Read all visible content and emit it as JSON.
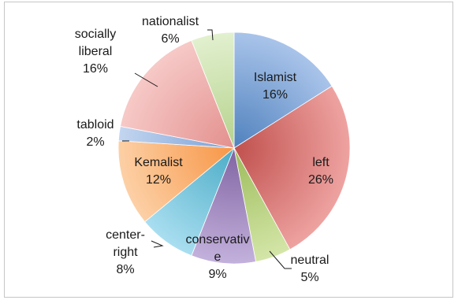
{
  "chart_data": {
    "type": "pie",
    "title": "",
    "slices": [
      {
        "label": "Islamist",
        "percent_label": "16%",
        "value": 16,
        "color": "#4f81bd",
        "light": "#a9c4ea",
        "text_lines": [
          "Islamist",
          "16%"
        ],
        "inside": true
      },
      {
        "label": "left",
        "percent_label": "26%",
        "value": 26,
        "color": "#c0504d",
        "light": "#eea3a1",
        "text_lines": [
          "left",
          "26%"
        ],
        "inside": true
      },
      {
        "label": "neutral",
        "percent_label": "5%",
        "value": 5,
        "color": "#9bbb59",
        "light": "#d4e6a8",
        "text_lines": [
          "neutral",
          "5%"
        ],
        "inside": false
      },
      {
        "label": "conservative",
        "percent_label": "9%",
        "value": 9,
        "color": "#8064a2",
        "light": "#c3b1dc",
        "text_lines": [
          "conservativ",
          "e",
          "9%"
        ],
        "inside": false
      },
      {
        "label": "center-right",
        "percent_label": "8%",
        "value": 8,
        "color": "#4bacc6",
        "light": "#a9def0",
        "text_lines": [
          "center-",
          "right",
          "8%"
        ],
        "inside": false
      },
      {
        "label": "Kemalist",
        "percent_label": "12%",
        "value": 12,
        "color": "#f79646",
        "light": "#fcd0a6",
        "text_lines": [
          "Kemalist",
          "12%"
        ],
        "inside": true
      },
      {
        "label": "tabloid",
        "percent_label": "2%",
        "value": 2,
        "color": "#7ba0d6",
        "light": "#c3d6f0",
        "text_lines": [
          "tabloid",
          "2%"
        ],
        "inside": false
      },
      {
        "label": "socially liberal",
        "percent_label": "16%",
        "value": 16,
        "color": "#e3908d",
        "light": "#f6c9c7",
        "text_lines": [
          "socially",
          "liberal",
          "16%"
        ],
        "inside": false
      },
      {
        "label": "nationalist",
        "percent_label": "6%",
        "value": 6,
        "color": "#b5d28c",
        "light": "#e2f0cf",
        "text_lines": [
          "nationalist",
          "6%"
        ],
        "inside": false
      }
    ]
  }
}
